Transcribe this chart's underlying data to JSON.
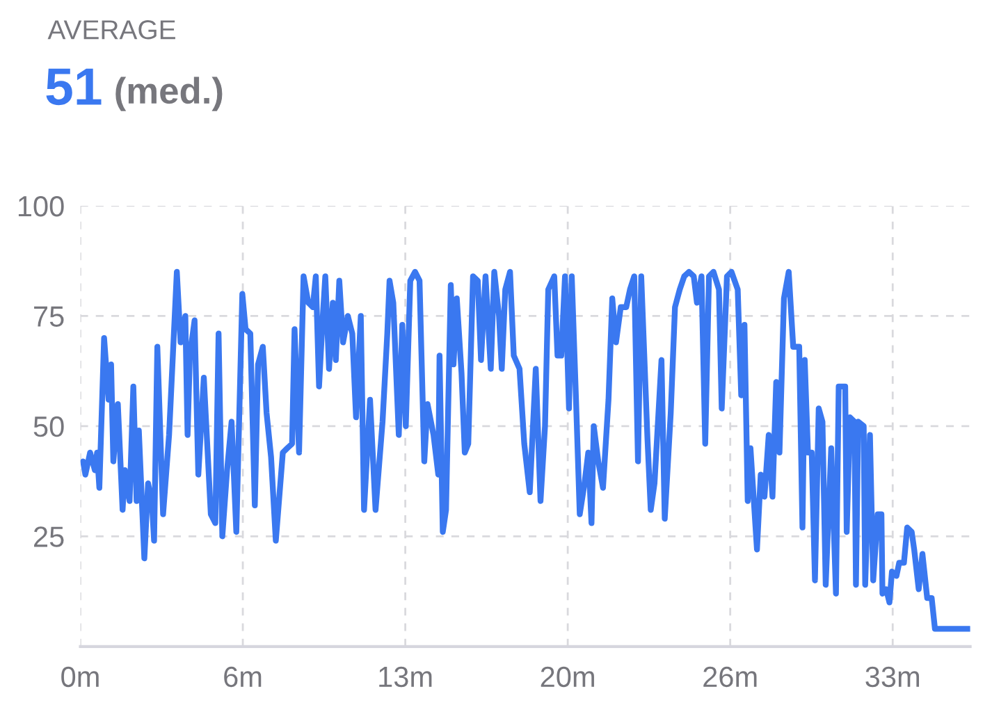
{
  "chart_data": {
    "type": "line",
    "title": "AVERAGE",
    "subtitle": "51 (med.)",
    "xlim": [
      0,
      35.6
    ],
    "ylim": [
      0,
      100
    ],
    "xticks": [
      {
        "value": 0,
        "label": "0m"
      },
      {
        "value": 6.5,
        "label": "6m"
      },
      {
        "value": 13,
        "label": "13m"
      },
      {
        "value": 19.5,
        "label": "20m"
      },
      {
        "value": 26,
        "label": "26m"
      },
      {
        "value": 32.5,
        "label": "33m"
      }
    ],
    "yticks": [
      25,
      50,
      75,
      100
    ],
    "grid": true,
    "line_style": "solid",
    "marker": "none",
    "series": [
      {
        "color": "#3a78f0",
        "x": [
          0.11,
          0.2,
          0.39,
          0.58,
          0.67,
          0.76,
          0.95,
          1.13,
          1.23,
          1.32,
          1.5,
          1.69,
          1.78,
          1.97,
          2.12,
          2.25,
          2.34,
          2.56,
          2.71,
          2.86,
          2.95,
          3.08,
          3.31,
          3.55,
          3.86,
          4.01,
          4.2,
          4.29,
          4.38,
          4.57,
          4.72,
          4.94,
          5.22,
          5.4,
          5.53,
          5.68,
          5.87,
          6.05,
          6.24,
          6.48,
          6.61,
          6.8,
          6.98,
          7.11,
          7.3,
          7.45,
          7.63,
          7.82,
          8.1,
          8.28,
          8.47,
          8.57,
          8.75,
          8.93,
          9.12,
          9.3,
          9.42,
          9.55,
          9.68,
          9.8,
          9.95,
          10.1,
          10.22,
          10.36,
          10.51,
          10.7,
          10.88,
          11.03,
          11.22,
          11.35,
          11.59,
          11.81,
          12.09,
          12.28,
          12.37,
          12.52,
          12.74,
          12.88,
          13.02,
          13.2,
          13.39,
          13.57,
          13.76,
          13.89,
          14.13,
          14.32,
          14.37,
          14.5,
          14.63,
          14.82,
          14.93,
          15.06,
          15.25,
          15.38,
          15.52,
          15.71,
          15.9,
          16.03,
          16.21,
          16.42,
          16.56,
          16.75,
          16.86,
          17.0,
          17.19,
          17.34,
          17.57,
          17.76,
          17.98,
          18.22,
          18.41,
          18.59,
          18.72,
          18.96,
          19.09,
          19.24,
          19.39,
          19.55,
          19.66,
          19.83,
          19.98,
          20.17,
          20.32,
          20.45,
          20.54,
          20.72,
          20.91,
          21.13,
          21.28,
          21.43,
          21.62,
          21.84,
          21.99,
          22.16,
          22.31,
          22.44,
          22.69,
          22.82,
          22.97,
          23.25,
          23.38,
          23.62,
          23.79,
          23.98,
          24.16,
          24.35,
          24.54,
          24.67,
          24.85,
          25.0,
          25.15,
          25.33,
          25.55,
          25.66,
          25.87,
          26.05,
          26.3,
          26.44,
          26.57,
          26.7,
          26.81,
          27.07,
          27.22,
          27.37,
          27.54,
          27.69,
          27.84,
          27.97,
          28.15,
          28.34,
          28.52,
          28.76,
          28.89,
          28.98,
          29.11,
          29.26,
          29.39,
          29.54,
          29.69,
          29.82,
          30.04,
          30.23,
          30.34,
          30.6,
          30.66,
          30.79,
          30.97,
          31.03,
          31.12,
          31.34,
          31.4,
          31.59,
          31.72,
          31.9,
          32.05,
          32.09,
          32.24,
          32.37,
          32.47,
          32.65,
          32.76,
          32.95,
          33.08,
          33.26,
          33.36,
          33.54,
          33.69,
          33.88,
          34.06,
          34.19,
          35.58
        ],
        "values": [
          42,
          39,
          44,
          40,
          44,
          36,
          70,
          56,
          64,
          42,
          55,
          31,
          40,
          33,
          59,
          33,
          49,
          20,
          37,
          33,
          24,
          68,
          30,
          48,
          85,
          69,
          75,
          48,
          66,
          74,
          39,
          61,
          30,
          28,
          71,
          25,
          40,
          51,
          26,
          80,
          72,
          71,
          32,
          64,
          68,
          53,
          43,
          24,
          44,
          45,
          46,
          72,
          44,
          84,
          78,
          77,
          84,
          59,
          73,
          84,
          63,
          78,
          65,
          83,
          69,
          75,
          71,
          52,
          75,
          31,
          56,
          31,
          51,
          71,
          83,
          78,
          48,
          73,
          50,
          83,
          85,
          83,
          42,
          55,
          48,
          39,
          66,
          26,
          31,
          82,
          64,
          79,
          62,
          44,
          46,
          84,
          83,
          65,
          84,
          63,
          85,
          75,
          63,
          81,
          85,
          66,
          63,
          46,
          35,
          63,
          33,
          50,
          81,
          84,
          66,
          66,
          84,
          54,
          84,
          56,
          30,
          37,
          44,
          28,
          50,
          42,
          36,
          56,
          79,
          69,
          77,
          77,
          81,
          84,
          42,
          84,
          47,
          31,
          37,
          65,
          29,
          53,
          77,
          81,
          84,
          85,
          84,
          78,
          84,
          46,
          84,
          85,
          81,
          54,
          84,
          85,
          81,
          57,
          73,
          33,
          45,
          22,
          39,
          34,
          48,
          34,
          60,
          44,
          79,
          85,
          68,
          68,
          27,
          65,
          44,
          44,
          15,
          54,
          51,
          14,
          45,
          12,
          59,
          59,
          26,
          52,
          51,
          14,
          51,
          50,
          14,
          48,
          15,
          30,
          30,
          12,
          13,
          10,
          17,
          16,
          19,
          19,
          27,
          26,
          22,
          13,
          21,
          11,
          11,
          4,
          4
        ]
      }
    ]
  }
}
